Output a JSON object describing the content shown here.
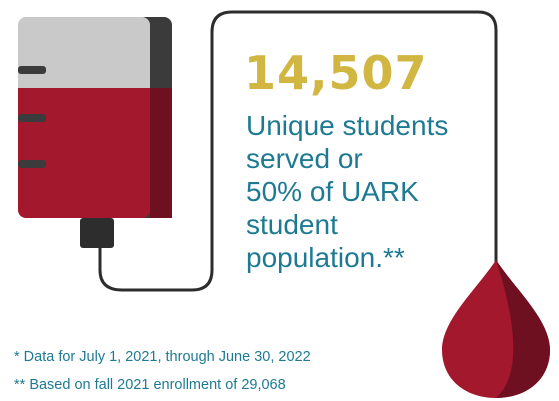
{
  "stat": {
    "number": "14,507",
    "description_lines": [
      "Unique students",
      "served or",
      "50% of UARK",
      "student",
      "population.**"
    ]
  },
  "footnotes": [
    "* Data for July 1, 2021, through June 30, 2022",
    "** Based on fall 2021 enrollment of 29,068"
  ],
  "colors": {
    "number": "#d2b642",
    "text": "#1e7a93",
    "blood": "#a3182d",
    "blood_dark": "#6e1020",
    "bag_top": "#c9c9c9",
    "bag_shadow": "#3b3b3b",
    "tube": "#2d2d2d"
  },
  "icons": [
    "blood-bag-icon",
    "blood-drop-icon"
  ]
}
